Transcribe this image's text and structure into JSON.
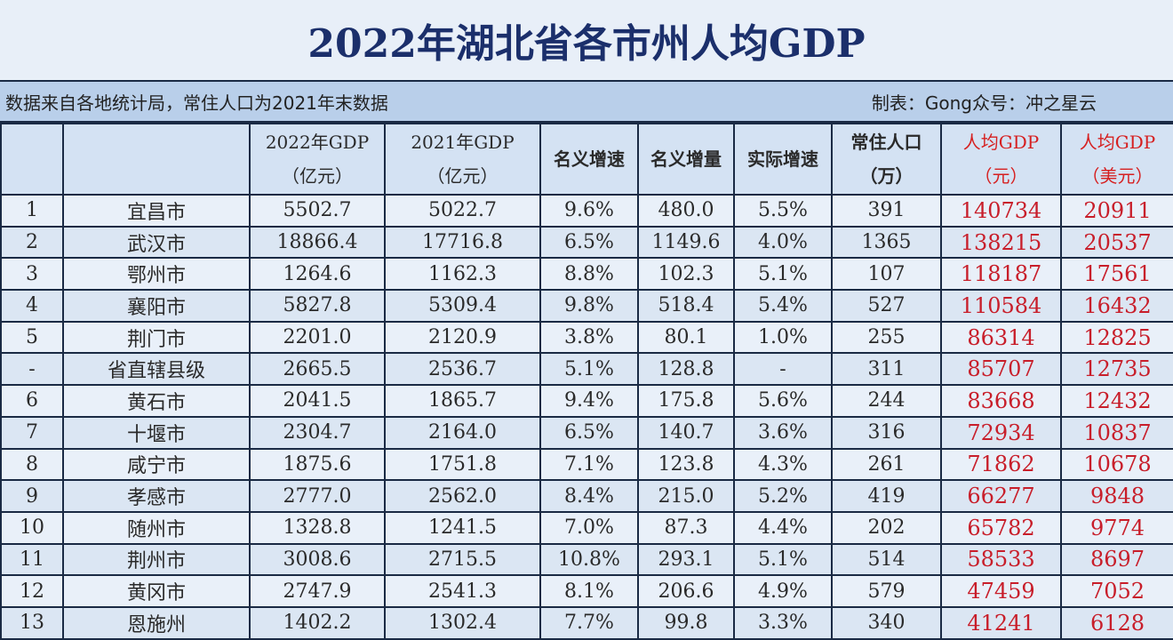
{
  "title": "2022年湖北省各市州人均GDP",
  "subtitle_left": "数据来自各地统计局，常住人口为2021年末数据",
  "subtitle_right": "制表：Gong众号：冲之星云",
  "headers": [
    {
      "l1": "",
      "l2": ""
    },
    {
      "l1": "",
      "l2": ""
    },
    {
      "l1": "2022年GDP",
      "l2": "（亿元）"
    },
    {
      "l1": "2021年GDP",
      "l2": "（亿元）"
    },
    {
      "l1": "名义增速",
      "l2": ""
    },
    {
      "l1": "名义增量",
      "l2": ""
    },
    {
      "l1": "实际增速",
      "l2": ""
    },
    {
      "l1": "常住人口",
      "l2": "（万）"
    },
    {
      "l1": "人均GDP",
      "l2": "（元）"
    },
    {
      "l1": "人均GDP",
      "l2": "（美元）"
    }
  ],
  "rows": [
    [
      "1",
      "宜昌市",
      "5502.7",
      "5022.7",
      "9.6%",
      "480.0",
      "5.5%",
      "391",
      "140734",
      "20911"
    ],
    [
      "2",
      "武汉市",
      "18866.4",
      "17716.8",
      "6.5%",
      "1149.6",
      "4.0%",
      "1365",
      "138215",
      "20537"
    ],
    [
      "3",
      "鄂州市",
      "1264.6",
      "1162.3",
      "8.8%",
      "102.3",
      "5.1%",
      "107",
      "118187",
      "17561"
    ],
    [
      "4",
      "襄阳市",
      "5827.8",
      "5309.4",
      "9.8%",
      "518.4",
      "5.4%",
      "527",
      "110584",
      "16432"
    ],
    [
      "5",
      "荆门市",
      "2201.0",
      "2120.9",
      "3.8%",
      "80.1",
      "1.0%",
      "255",
      "86314",
      "12825"
    ],
    [
      "-",
      "省直辖县级",
      "2665.5",
      "2536.7",
      "5.1%",
      "128.8",
      "-",
      "311",
      "85707",
      "12735"
    ],
    [
      "6",
      "黄石市",
      "2041.5",
      "1865.7",
      "9.4%",
      "175.8",
      "5.6%",
      "244",
      "83668",
      "12432"
    ],
    [
      "7",
      "十堰市",
      "2304.7",
      "2164.0",
      "6.5%",
      "140.7",
      "3.6%",
      "316",
      "72934",
      "10837"
    ],
    [
      "8",
      "咸宁市",
      "1875.6",
      "1751.8",
      "7.1%",
      "123.8",
      "4.3%",
      "261",
      "71862",
      "10678"
    ],
    [
      "9",
      "孝感市",
      "2777.0",
      "2562.0",
      "8.4%",
      "215.0",
      "5.2%",
      "419",
      "66277",
      "9848"
    ],
    [
      "10",
      "随州市",
      "1328.8",
      "1241.5",
      "7.0%",
      "87.3",
      "4.4%",
      "202",
      "65782",
      "9774"
    ],
    [
      "11",
      "荆州市",
      "3008.6",
      "2715.5",
      "10.8%",
      "293.1",
      "5.1%",
      "514",
      "58533",
      "8697"
    ],
    [
      "12",
      "黄冈市",
      "2747.9",
      "2541.3",
      "8.1%",
      "206.6",
      "4.9%",
      "579",
      "47459",
      "7052"
    ],
    [
      "13",
      "恩施州",
      "1402.2",
      "1302.4",
      "7.7%",
      "99.8",
      "3.3%",
      "340",
      "41241",
      "6128"
    ]
  ],
  "colors": {
    "accent_red": "#c81e2a",
    "title_blue": "#1b2f6b"
  }
}
